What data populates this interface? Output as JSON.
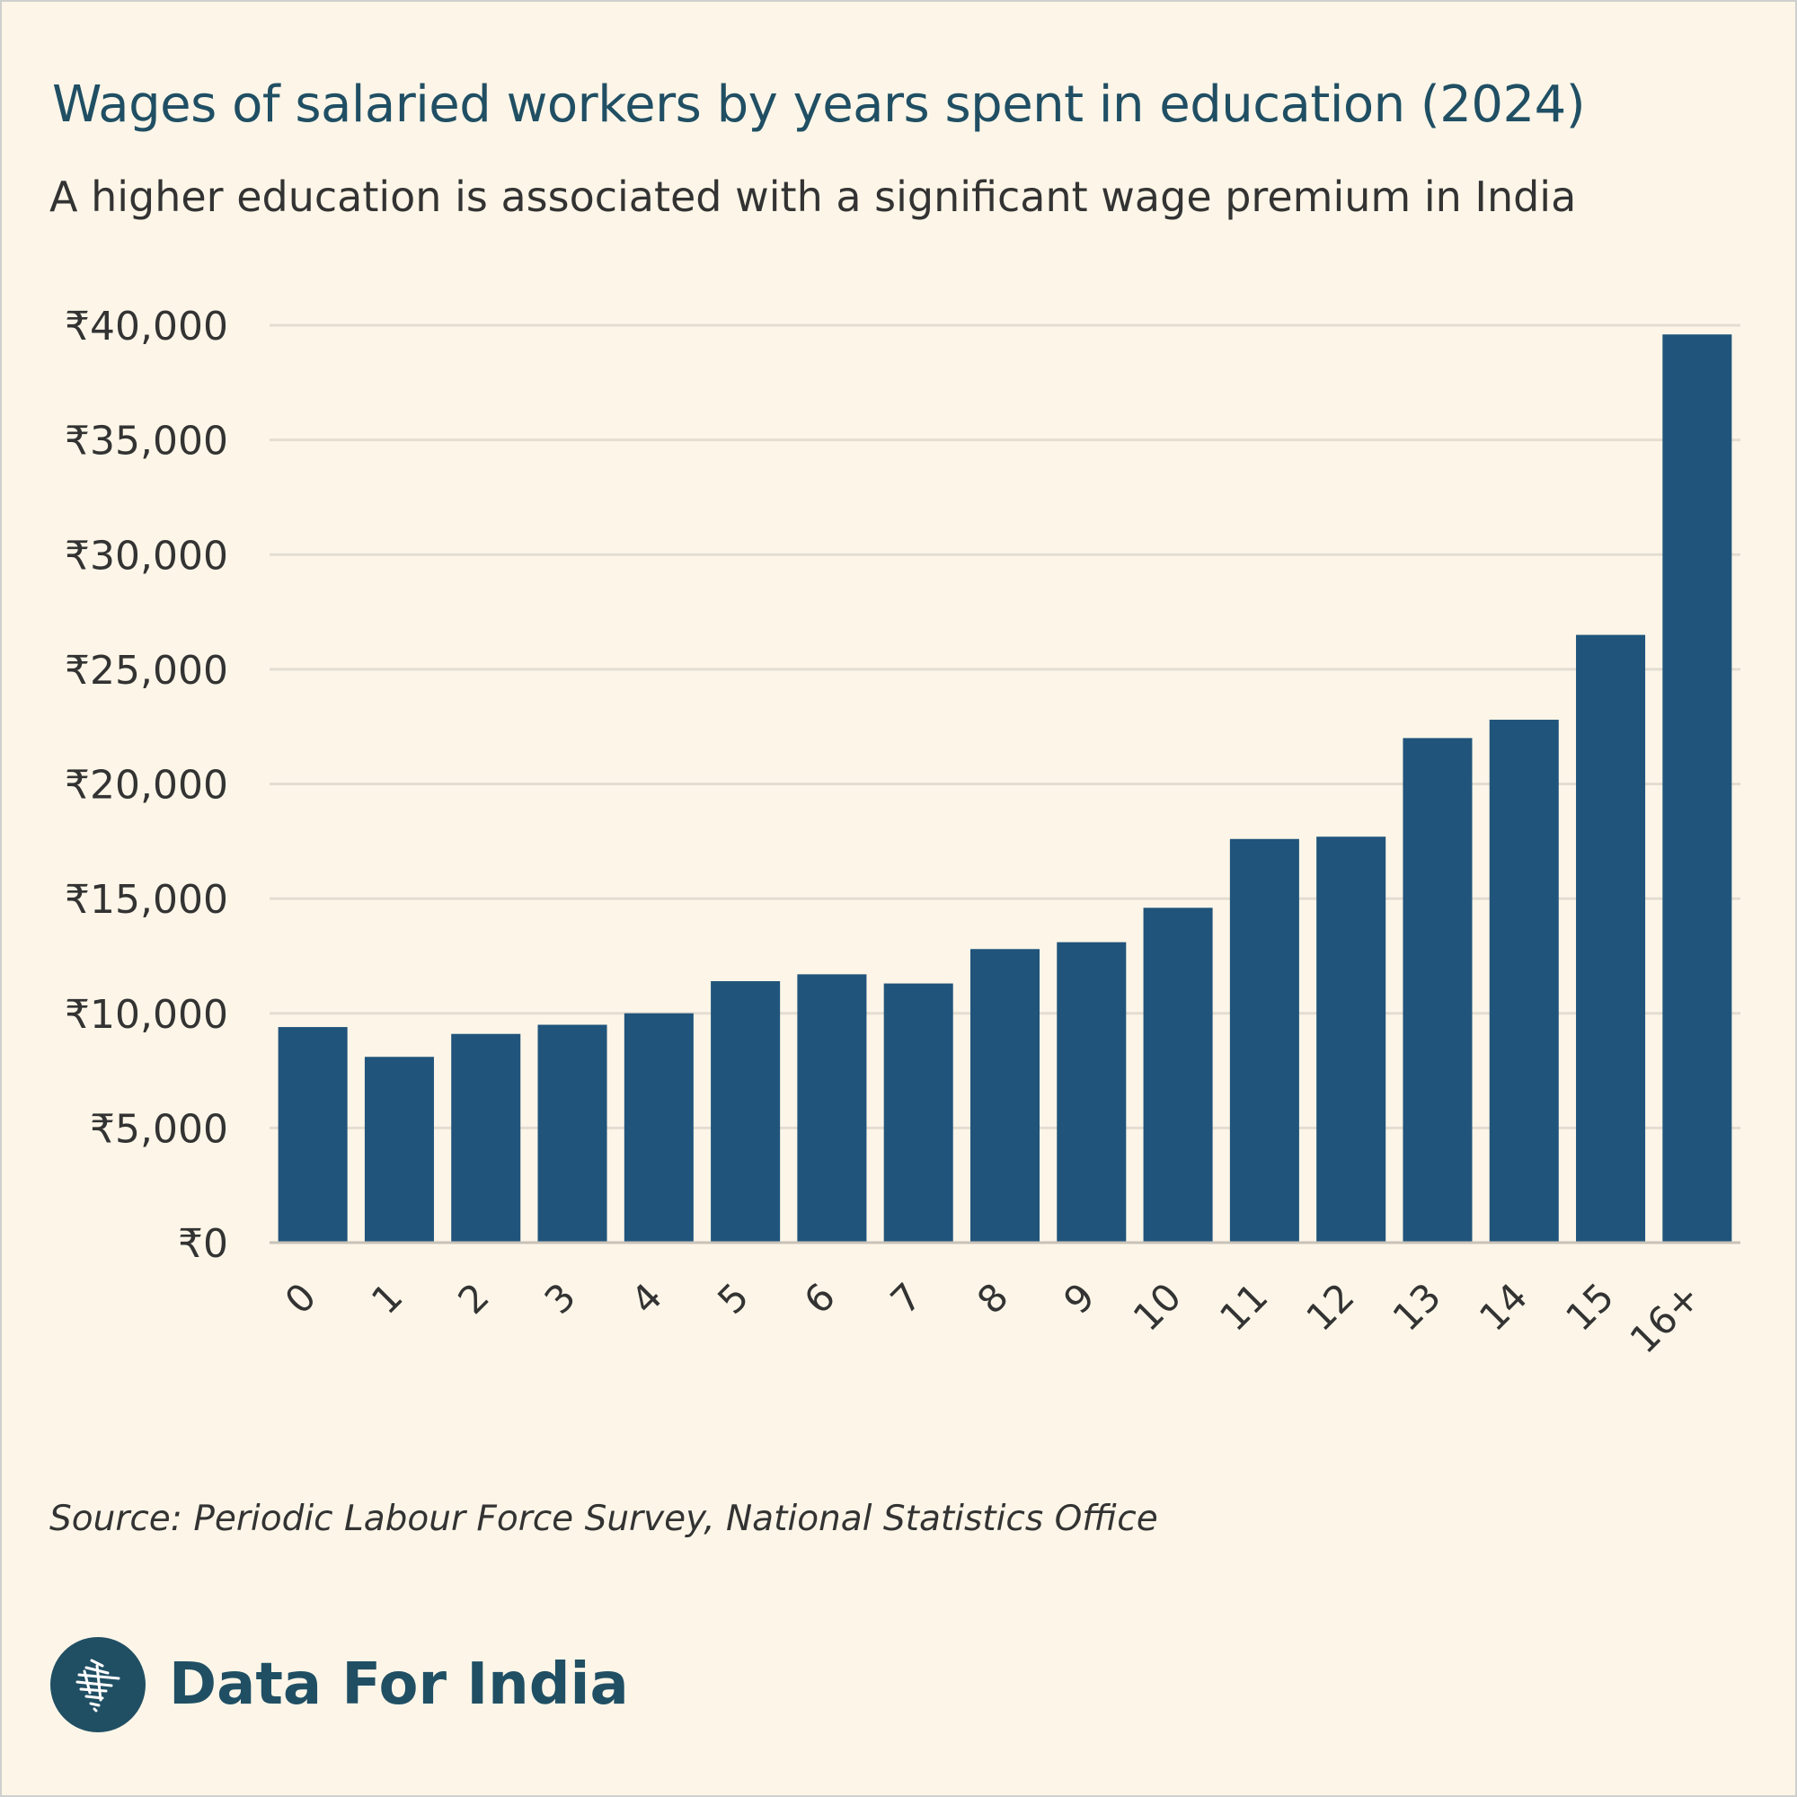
{
  "header": {
    "title": "Wages of salaried workers by years spent in education (2024)",
    "subtitle": "A higher education is associated with a significant wage premium in India"
  },
  "footer": {
    "source": "Source: Periodic Labour Force Survey, National Statistics Office",
    "brand_name": "Data For India",
    "logo_icon": "india-map-icon"
  },
  "colors": {
    "background": "#fdf6e8",
    "bar": "#20547b",
    "title": "#204f64",
    "gridline": "#e3ddd2"
  },
  "chart_data": {
    "type": "bar",
    "categories": [
      "0",
      "1",
      "2",
      "3",
      "4",
      "5",
      "6",
      "7",
      "8",
      "9",
      "10",
      "11",
      "12",
      "13",
      "14",
      "15",
      "16+"
    ],
    "values": [
      9400,
      8100,
      9100,
      9500,
      10000,
      11400,
      11700,
      11300,
      12800,
      13100,
      14600,
      17600,
      17700,
      22000,
      22800,
      26500,
      39600
    ],
    "ylim": [
      0,
      40000
    ],
    "yticks": [
      0,
      5000,
      10000,
      15000,
      20000,
      25000,
      30000,
      35000,
      40000
    ],
    "ytick_labels": [
      "₹0",
      "₹5,000",
      "₹10,000",
      "₹15,000",
      "₹20,000",
      "₹25,000",
      "₹30,000",
      "₹35,000",
      "₹40,000"
    ],
    "xlabel": "",
    "ylabel": "",
    "grid": true,
    "legend": "none"
  }
}
